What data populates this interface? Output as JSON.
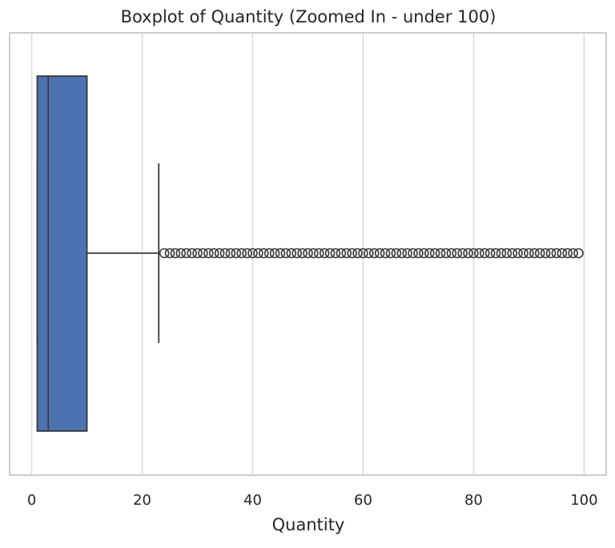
{
  "chart_data": {
    "type": "boxplot",
    "title": "Boxplot of Quantity (Zoomed In - under 100)",
    "xlabel": "Quantity",
    "ylabel": "",
    "xlim": [
      -4,
      104
    ],
    "xticks": [
      0,
      20,
      40,
      60,
      80,
      100
    ],
    "grid": true,
    "orientation": "horizontal",
    "colors": {
      "box_fill": "#4c72b0",
      "line": "#3a3a3a",
      "grid": "#d9d9d9",
      "frame": "#cccccc"
    },
    "box": {
      "min": 1,
      "q1": 1,
      "median": 3,
      "q3": 10,
      "whisker_high": 23
    },
    "outliers_range": [
      24,
      99
    ],
    "outliers_step": 1
  }
}
